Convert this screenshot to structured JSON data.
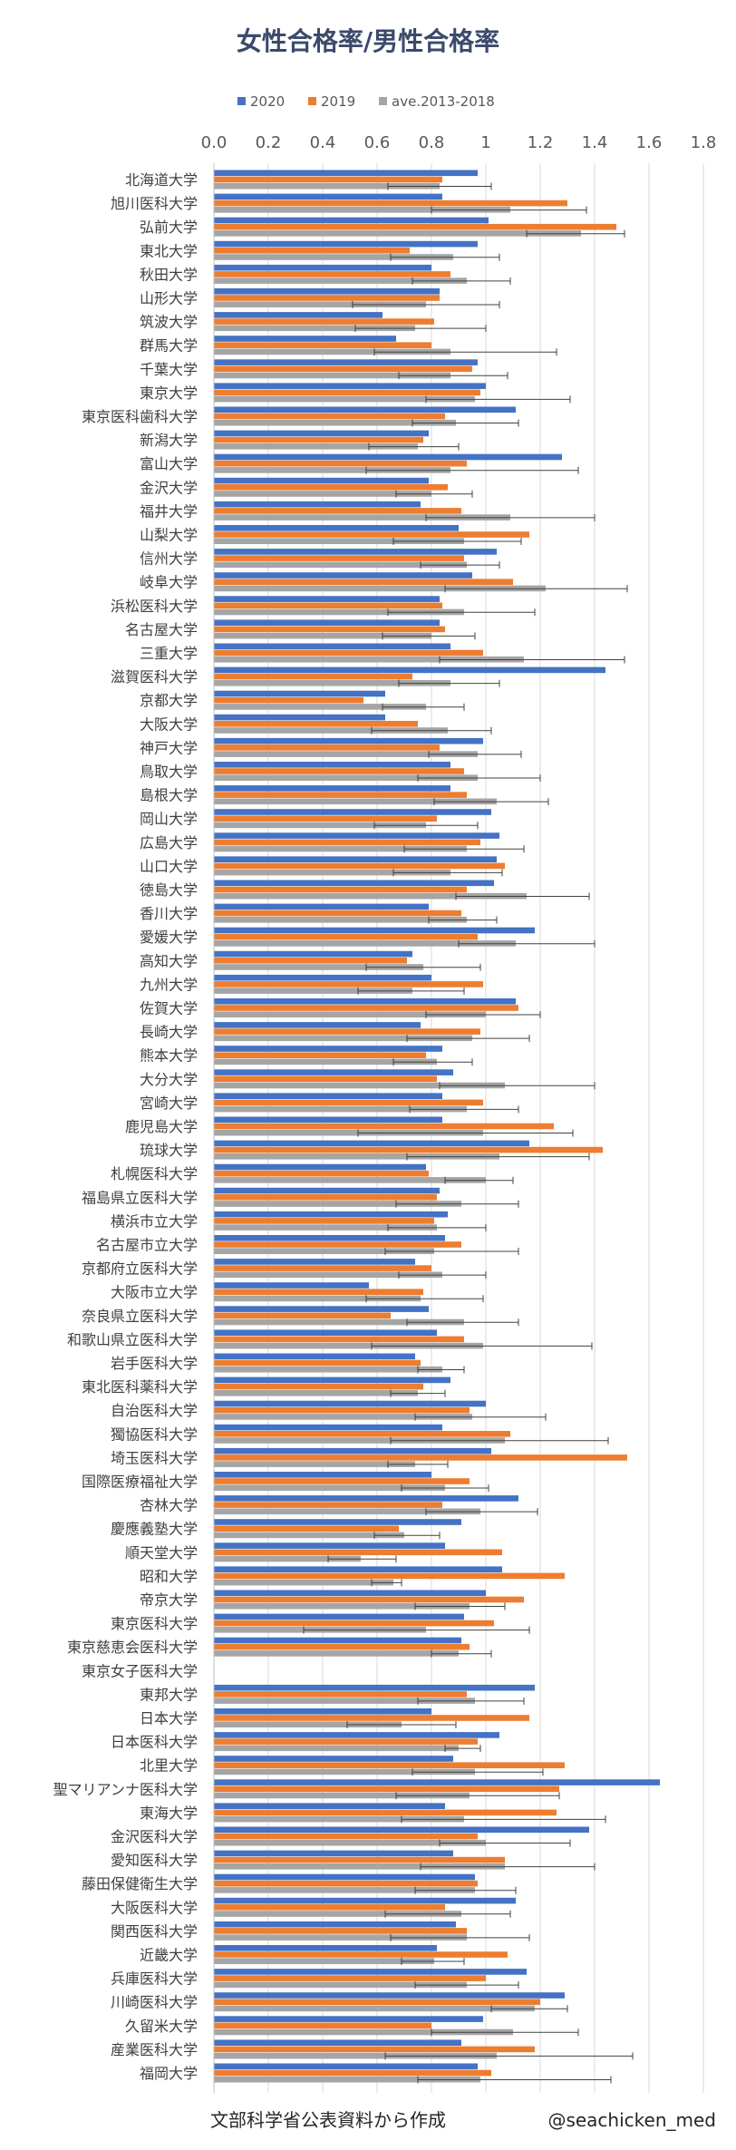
{
  "chart_data": {
    "type": "bar",
    "orientation": "horizontal",
    "title": "女性合格率/男性合格率",
    "footer": {
      "source": "文部科学省公表資料から作成",
      "credit": "@seachicken_med"
    },
    "xlim": [
      0,
      1.8
    ],
    "xticks": [
      "0.0",
      "0.2",
      "0.4",
      "0.6",
      "0.8",
      "1",
      "1.2",
      "1.4",
      "1.6",
      "1.8"
    ],
    "legend_position": "top",
    "grid": "vertical",
    "colors": {
      "2020": "#4472C4",
      "2019": "#ED7D31",
      "ave": "#A5A5A5",
      "error": "#404040"
    },
    "categories": [
      "北海道大学",
      "旭川医科大学",
      "弘前大学",
      "東北大学",
      "秋田大学",
      "山形大学",
      "筑波大学",
      "群馬大学",
      "千葉大学",
      "東京大学",
      "東京医科歯科大学",
      "新潟大学",
      "富山大学",
      "金沢大学",
      "福井大学",
      "山梨大学",
      "信州大学",
      "岐阜大学",
      "浜松医科大学",
      "名古屋大学",
      "三重大学",
      "滋賀医科大学",
      "京都大学",
      "大阪大学",
      "神戸大学",
      "鳥取大学",
      "島根大学",
      "岡山大学",
      "広島大学",
      "山口大学",
      "徳島大学",
      "香川大学",
      "愛媛大学",
      "高知大学",
      "九州大学",
      "佐賀大学",
      "長崎大学",
      "熊本大学",
      "大分大学",
      "宮崎大学",
      "鹿児島大学",
      "琉球大学",
      "札幌医科大学",
      "福島県立医科大学",
      "横浜市立大学",
      "名古屋市立大学",
      "京都府立医科大学",
      "大阪市立大学",
      "奈良県立医科大学",
      "和歌山県立医科大学",
      "岩手医科大学",
      "東北医科薬科大学",
      "自治医科大学",
      "獨協医科大学",
      "埼玉医科大学",
      "国際医療福祉大学",
      "杏林大学",
      "慶應義塾大学",
      "順天堂大学",
      "昭和大学",
      "帝京大学",
      "東京医科大学",
      "東京慈恵会医科大学",
      "東京女子医科大学",
      "東邦大学",
      "日本大学",
      "日本医科大学",
      "北里大学",
      "聖マリアンナ医科大学",
      "東海大学",
      "金沢医科大学",
      "愛知医科大学",
      "藤田保健衛生大学",
      "大阪医科大学",
      "関西医科大学",
      "近畿大学",
      "兵庫医科大学",
      "川崎医科大学",
      "久留米大学",
      "産業医科大学",
      "福岡大学"
    ],
    "series": [
      {
        "name": "2020",
        "values": [
          0.97,
          0.84,
          1.01,
          0.97,
          0.8,
          0.83,
          0.62,
          0.67,
          0.97,
          1.0,
          1.11,
          0.79,
          1.28,
          0.79,
          0.76,
          0.9,
          1.04,
          0.95,
          0.83,
          0.83,
          0.87,
          1.44,
          0.63,
          0.63,
          0.99,
          0.87,
          0.87,
          1.02,
          1.05,
          1.04,
          1.03,
          0.79,
          1.18,
          0.73,
          0.8,
          1.11,
          0.76,
          0.84,
          0.88,
          0.84,
          0.84,
          1.16,
          0.78,
          0.83,
          0.86,
          0.85,
          0.74,
          0.57,
          0.79,
          0.82,
          0.74,
          0.87,
          1.0,
          0.84,
          1.02,
          0.8,
          1.12,
          0.91,
          0.85,
          1.06,
          1.0,
          0.92,
          0.91,
          null,
          1.18,
          0.8,
          1.05,
          0.88,
          1.64,
          0.85,
          1.38,
          0.88,
          0.96,
          1.11,
          0.89,
          0.82,
          1.15,
          1.29,
          0.99,
          0.91,
          0.97
        ]
      },
      {
        "name": "2019",
        "values": [
          0.84,
          1.3,
          1.48,
          0.72,
          0.87,
          0.83,
          0.81,
          0.8,
          0.95,
          0.98,
          0.85,
          0.77,
          0.93,
          0.86,
          0.91,
          1.16,
          0.92,
          1.1,
          0.84,
          0.85,
          0.99,
          0.73,
          0.55,
          0.75,
          0.83,
          0.92,
          0.93,
          0.82,
          0.98,
          1.07,
          0.93,
          0.91,
          0.97,
          0.71,
          0.99,
          1.12,
          0.98,
          0.78,
          0.82,
          0.99,
          1.25,
          1.43,
          0.79,
          0.82,
          0.81,
          0.91,
          0.8,
          0.77,
          0.65,
          0.92,
          0.76,
          0.77,
          0.94,
          1.09,
          1.52,
          0.94,
          0.84,
          0.68,
          1.06,
          1.29,
          1.14,
          1.03,
          0.94,
          null,
          0.93,
          1.16,
          0.97,
          1.29,
          1.27,
          1.26,
          0.97,
          1.07,
          0.97,
          0.85,
          0.93,
          1.08,
          1.0,
          1.2,
          0.8,
          1.18,
          1.02
        ]
      },
      {
        "name": "ave.2013-2018",
        "values": [
          0.83,
          1.09,
          1.35,
          0.88,
          0.93,
          0.78,
          0.74,
          0.87,
          0.87,
          0.96,
          0.89,
          0.75,
          0.87,
          0.8,
          1.09,
          0.92,
          0.93,
          1.22,
          0.92,
          0.8,
          1.14,
          0.87,
          0.78,
          0.86,
          0.97,
          0.97,
          1.04,
          0.78,
          0.93,
          0.87,
          1.15,
          0.93,
          1.11,
          0.77,
          0.73,
          1.0,
          0.95,
          0.82,
          1.07,
          0.93,
          0.99,
          1.05,
          1.0,
          0.91,
          0.82,
          0.81,
          0.84,
          0.76,
          0.92,
          0.99,
          0.84,
          0.75,
          0.95,
          1.07,
          0.74,
          0.85,
          0.98,
          0.7,
          0.54,
          0.66,
          0.94,
          0.78,
          0.9,
          null,
          0.96,
          0.69,
          0.9,
          0.96,
          0.94,
          0.92,
          1.0,
          1.07,
          0.96,
          0.91,
          0.93,
          0.81,
          0.93,
          1.18,
          1.1,
          1.04,
          0.98
        ]
      }
    ],
    "error_bars": {
      "series": "ave.2013-2018",
      "low": [
        0.64,
        0.8,
        1.15,
        0.65,
        0.73,
        0.51,
        0.52,
        0.59,
        0.68,
        0.78,
        0.73,
        0.57,
        0.56,
        0.67,
        0.78,
        0.66,
        0.76,
        0.85,
        0.64,
        0.62,
        0.83,
        0.68,
        0.62,
        0.58,
        0.79,
        0.75,
        0.81,
        0.59,
        0.7,
        0.66,
        0.89,
        0.79,
        0.9,
        0.56,
        0.53,
        0.78,
        0.71,
        0.66,
        0.83,
        0.72,
        0.53,
        0.71,
        0.85,
        0.67,
        0.64,
        0.63,
        0.68,
        0.56,
        0.71,
        0.58,
        0.75,
        0.65,
        0.74,
        0.65,
        0.64,
        0.69,
        0.78,
        0.59,
        0.42,
        0.58,
        0.74,
        0.33,
        0.8,
        null,
        0.75,
        0.49,
        0.85,
        0.73,
        0.67,
        0.69,
        0.83,
        0.76,
        0.74,
        0.63,
        0.65,
        0.69,
        0.74,
        1.02,
        0.8,
        0.63,
        0.75
      ],
      "high": [
        1.02,
        1.37,
        1.51,
        1.05,
        1.09,
        1.05,
        1.0,
        1.26,
        1.08,
        1.31,
        1.12,
        0.9,
        1.34,
        0.95,
        1.4,
        1.13,
        1.05,
        1.52,
        1.18,
        0.96,
        1.51,
        1.05,
        0.92,
        1.02,
        1.13,
        1.2,
        1.23,
        0.97,
        1.14,
        1.06,
        1.38,
        1.04,
        1.4,
        0.98,
        0.92,
        1.2,
        1.16,
        0.95,
        1.4,
        1.12,
        1.32,
        1.38,
        1.1,
        1.12,
        1.0,
        1.12,
        1.0,
        0.99,
        1.12,
        1.39,
        0.92,
        0.85,
        1.22,
        1.45,
        0.86,
        1.01,
        1.19,
        0.83,
        0.67,
        0.69,
        1.07,
        1.16,
        1.02,
        null,
        1.14,
        0.89,
        0.98,
        1.21,
        1.27,
        1.44,
        1.31,
        1.4,
        1.11,
        1.09,
        1.16,
        0.92,
        1.12,
        1.3,
        1.34,
        1.54,
        1.46
      ]
    }
  }
}
